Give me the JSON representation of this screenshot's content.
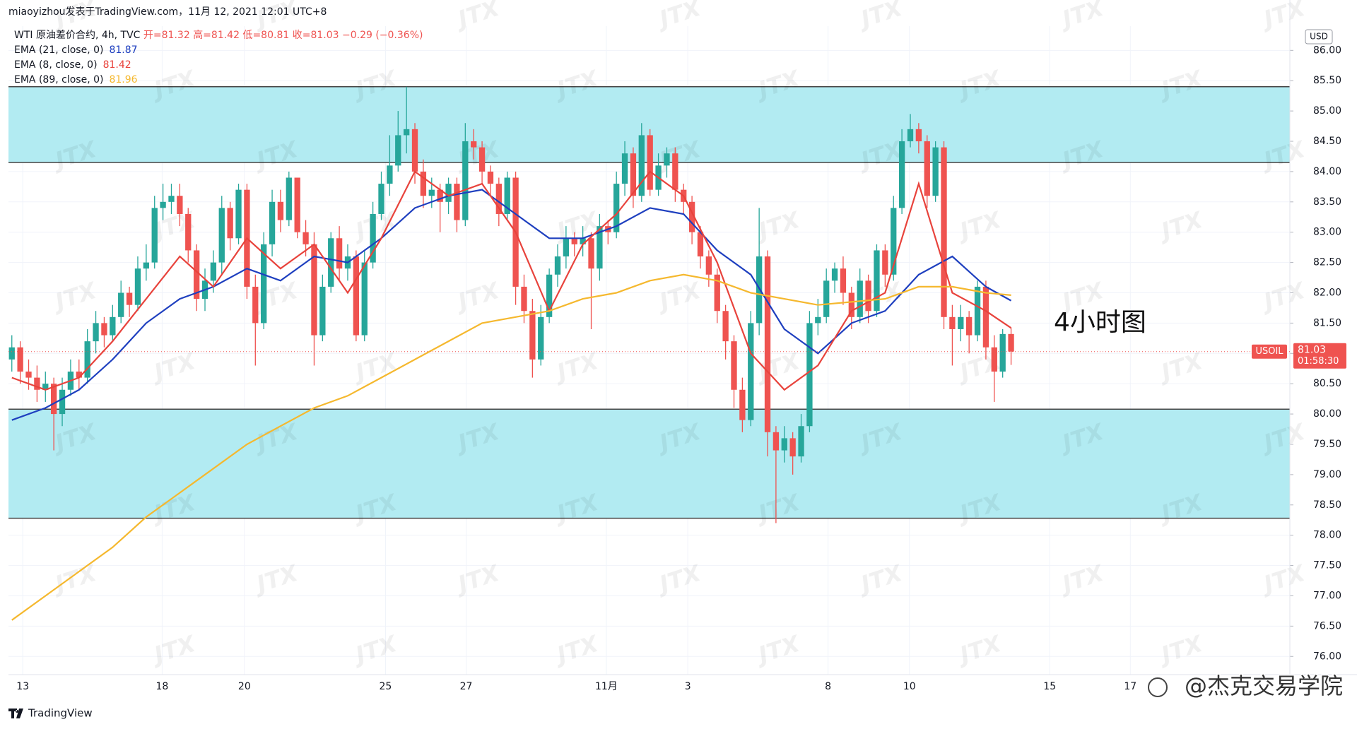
{
  "header": {
    "attribution": "miaoyizhou发表于TradingView.com，11月 12, 2021 12:01 UTC+8"
  },
  "footer": {
    "logo": "TradingView",
    "watermark": "@杰克交易学院",
    "background_mark": "JTX"
  },
  "chart_data": {
    "type": "candlestick",
    "legend": {
      "symbol": "WTI 原油差价合约, 4h, TVC",
      "open": "开=81.32",
      "high": "高=81.42",
      "low": "低=80.81",
      "close": "收=81.03",
      "change": "−0.29 (−0.36%)"
    },
    "currency": "USD",
    "up_color": "#26a69a",
    "down_color": "#ef5350",
    "zone_color": "#b2ebf2",
    "grid": true,
    "xlim": [
      -0.4,
      152.2
    ],
    "ylim": [
      75.7,
      86.4
    ],
    "xticks": [
      {
        "value": 1.3,
        "label": "13"
      },
      {
        "value": 17.9,
        "label": "18"
      },
      {
        "value": 27.7,
        "label": "20"
      },
      {
        "value": 44.5,
        "label": "25"
      },
      {
        "value": 54.1,
        "label": "27"
      },
      {
        "value": 70.8,
        "label": "11月"
      },
      {
        "value": 80.5,
        "label": "3"
      },
      {
        "value": 97.2,
        "label": "8"
      },
      {
        "value": 106.9,
        "label": "10"
      },
      {
        "value": 123.6,
        "label": "15"
      },
      {
        "value": 133.2,
        "label": "17"
      }
    ],
    "yticks": [
      {
        "value": 76,
        "label": "76.00"
      },
      {
        "value": 76.5,
        "label": "76.50"
      },
      {
        "value": 77,
        "label": "77.00"
      },
      {
        "value": 77.5,
        "label": "77.50"
      },
      {
        "value": 78,
        "label": "78.00"
      },
      {
        "value": 78.5,
        "label": "78.50"
      },
      {
        "value": 79,
        "label": "79.00"
      },
      {
        "value": 79.5,
        "label": "79.50"
      },
      {
        "value": 80,
        "label": "80.00"
      },
      {
        "value": 80.5,
        "label": "80.50"
      },
      {
        "value": 81,
        "label": "81.00"
      },
      {
        "value": 81.5,
        "label": "81.50"
      },
      {
        "value": 82,
        "label": "82.00"
      },
      {
        "value": 82.5,
        "label": "82.50"
      },
      {
        "value": 83,
        "label": "83.00"
      },
      {
        "value": 83.5,
        "label": "83.50"
      },
      {
        "value": 84,
        "label": "84.00"
      },
      {
        "value": 84.5,
        "label": "84.50"
      },
      {
        "value": 85,
        "label": "85.00"
      },
      {
        "value": 85.5,
        "label": "85.50"
      },
      {
        "value": 86,
        "label": "86.00"
      }
    ],
    "zones": [
      {
        "low": 84.15,
        "high": 85.4
      },
      {
        "low": 78.28,
        "high": 80.08
      }
    ],
    "candles": [
      [
        80.9,
        81.3,
        80.7,
        81.1
      ],
      [
        81.1,
        81.2,
        80.5,
        80.7
      ],
      [
        80.7,
        80.9,
        80.4,
        80.6
      ],
      [
        80.6,
        80.8,
        80.2,
        80.4
      ],
      [
        80.4,
        80.7,
        80.2,
        80.5
      ],
      [
        80.5,
        80.6,
        79.4,
        80.0
      ],
      [
        80.0,
        80.6,
        79.8,
        80.4
      ],
      [
        80.4,
        80.9,
        80.3,
        80.7
      ],
      [
        80.7,
        80.9,
        80.4,
        80.6
      ],
      [
        80.6,
        81.4,
        80.5,
        81.2
      ],
      [
        81.2,
        81.7,
        81.0,
        81.5
      ],
      [
        81.5,
        81.6,
        81.1,
        81.3
      ],
      [
        81.3,
        81.8,
        81.2,
        81.6
      ],
      [
        81.6,
        82.2,
        81.5,
        82.0
      ],
      [
        82.0,
        82.1,
        81.6,
        81.8
      ],
      [
        81.8,
        82.6,
        81.7,
        82.4
      ],
      [
        82.4,
        82.8,
        82.2,
        82.5
      ],
      [
        82.5,
        83.6,
        82.4,
        83.4
      ],
      [
        83.4,
        83.8,
        83.2,
        83.5
      ],
      [
        83.5,
        83.8,
        83.3,
        83.6
      ],
      [
        83.6,
        83.8,
        83.1,
        83.3
      ],
      [
        83.3,
        83.4,
        82.5,
        82.7
      ],
      [
        82.7,
        82.8,
        81.7,
        81.9
      ],
      [
        81.9,
        82.4,
        81.7,
        82.2
      ],
      [
        82.2,
        82.7,
        82.0,
        82.5
      ],
      [
        82.5,
        83.6,
        82.3,
        83.4
      ],
      [
        83.4,
        83.5,
        82.7,
        82.9
      ],
      [
        82.9,
        83.8,
        82.8,
        83.7
      ],
      [
        83.7,
        83.8,
        81.9,
        82.1
      ],
      [
        82.1,
        82.3,
        80.8,
        81.5
      ],
      [
        81.5,
        83.0,
        81.4,
        82.8
      ],
      [
        82.8,
        83.7,
        82.6,
        83.5
      ],
      [
        83.5,
        83.7,
        83.0,
        83.2
      ],
      [
        83.2,
        84.0,
        83.1,
        83.9
      ],
      [
        83.9,
        83.9,
        82.9,
        83.0
      ],
      [
        83.0,
        83.2,
        82.6,
        82.8
      ],
      [
        82.8,
        83.0,
        80.8,
        81.3
      ],
      [
        81.3,
        82.3,
        81.2,
        82.1
      ],
      [
        82.1,
        83.0,
        82.0,
        82.9
      ],
      [
        82.9,
        83.1,
        82.2,
        82.4
      ],
      [
        82.4,
        82.8,
        82.2,
        82.6
      ],
      [
        82.6,
        82.7,
        81.2,
        81.3
      ],
      [
        81.3,
        82.7,
        81.2,
        82.5
      ],
      [
        82.5,
        83.5,
        82.4,
        83.3
      ],
      [
        83.3,
        84.0,
        83.2,
        83.8
      ],
      [
        83.8,
        84.6,
        83.6,
        84.1
      ],
      [
        84.1,
        85.0,
        84.0,
        84.6
      ],
      [
        84.6,
        85.4,
        84.3,
        84.7
      ],
      [
        84.7,
        84.8,
        83.8,
        84.0
      ],
      [
        84.0,
        84.2,
        83.4,
        83.6
      ],
      [
        83.6,
        83.9,
        83.4,
        83.7
      ],
      [
        83.7,
        83.8,
        83.0,
        83.5
      ],
      [
        83.5,
        83.9,
        83.3,
        83.8
      ],
      [
        83.8,
        83.9,
        83.0,
        83.2
      ],
      [
        83.2,
        84.8,
        83.1,
        84.5
      ],
      [
        84.5,
        84.7,
        84.2,
        84.4
      ],
      [
        84.4,
        84.5,
        83.8,
        84.0
      ],
      [
        84.0,
        84.1,
        83.6,
        83.8
      ],
      [
        83.8,
        83.9,
        83.1,
        83.3
      ],
      [
        83.3,
        84.0,
        83.2,
        83.9
      ],
      [
        83.9,
        84.0,
        81.8,
        82.1
      ],
      [
        82.1,
        82.3,
        81.5,
        81.7
      ],
      [
        81.7,
        81.9,
        80.6,
        80.9
      ],
      [
        80.9,
        81.8,
        80.8,
        81.6
      ],
      [
        81.6,
        82.4,
        81.5,
        82.3
      ],
      [
        82.3,
        82.8,
        82.1,
        82.6
      ],
      [
        82.6,
        83.1,
        82.4,
        82.9
      ],
      [
        82.9,
        83.0,
        82.6,
        82.8
      ],
      [
        82.8,
        83.1,
        82.6,
        82.9
      ],
      [
        82.9,
        83.0,
        81.4,
        82.4
      ],
      [
        82.4,
        83.3,
        82.2,
        83.1
      ],
      [
        83.1,
        83.2,
        82.8,
        83.0
      ],
      [
        83.0,
        84.0,
        82.9,
        83.8
      ],
      [
        83.8,
        84.5,
        83.6,
        84.3
      ],
      [
        84.3,
        84.4,
        83.4,
        83.6
      ],
      [
        83.6,
        84.8,
        83.5,
        84.6
      ],
      [
        84.6,
        84.7,
        83.6,
        83.7
      ],
      [
        83.7,
        84.3,
        83.6,
        84.1
      ],
      [
        84.1,
        84.4,
        83.9,
        84.3
      ],
      [
        84.3,
        84.4,
        83.5,
        83.7
      ],
      [
        83.7,
        83.8,
        83.3,
        83.5
      ],
      [
        83.5,
        83.6,
        82.8,
        83.0
      ],
      [
        83.0,
        83.1,
        82.4,
        82.6
      ],
      [
        82.6,
        82.7,
        82.1,
        82.3
      ],
      [
        82.3,
        82.4,
        81.5,
        81.7
      ],
      [
        81.7,
        81.8,
        80.9,
        81.2
      ],
      [
        81.2,
        81.3,
        80.1,
        80.4
      ],
      [
        80.4,
        80.6,
        79.7,
        79.9
      ],
      [
        79.9,
        81.7,
        79.8,
        81.5
      ],
      [
        81.5,
        83.4,
        81.3,
        82.6
      ],
      [
        82.6,
        82.7,
        79.3,
        79.7
      ],
      [
        79.7,
        79.8,
        78.2,
        79.4
      ],
      [
        79.4,
        79.8,
        79.2,
        79.6
      ],
      [
        79.6,
        79.7,
        79.0,
        79.3
      ],
      [
        79.3,
        80.0,
        79.2,
        79.8
      ],
      [
        79.8,
        81.7,
        79.7,
        81.5
      ],
      [
        81.5,
        81.9,
        81.3,
        81.6
      ],
      [
        81.6,
        82.4,
        81.5,
        82.2
      ],
      [
        82.2,
        82.5,
        82.0,
        82.4
      ],
      [
        82.4,
        82.6,
        81.8,
        82.0
      ],
      [
        82.0,
        82.1,
        81.4,
        81.6
      ],
      [
        81.6,
        82.4,
        81.5,
        82.2
      ],
      [
        82.2,
        82.3,
        81.5,
        81.7
      ],
      [
        81.7,
        82.8,
        81.6,
        82.7
      ],
      [
        82.7,
        82.8,
        82.1,
        82.3
      ],
      [
        82.3,
        83.6,
        82.2,
        83.4
      ],
      [
        83.4,
        84.7,
        83.3,
        84.5
      ],
      [
        84.5,
        84.95,
        84.4,
        84.7
      ],
      [
        84.7,
        84.8,
        84.3,
        84.5
      ],
      [
        84.5,
        84.6,
        83.4,
        83.6
      ],
      [
        83.6,
        84.5,
        83.5,
        84.4
      ],
      [
        84.4,
        84.5,
        81.4,
        81.6
      ],
      [
        81.6,
        81.8,
        80.8,
        81.4
      ],
      [
        81.4,
        81.8,
        81.2,
        81.6
      ],
      [
        81.6,
        81.7,
        81.0,
        81.3
      ],
      [
        81.3,
        82.2,
        81.2,
        82.1
      ],
      [
        82.1,
        82.2,
        80.9,
        81.1
      ],
      [
        81.1,
        81.3,
        80.2,
        80.7
      ],
      [
        80.7,
        81.4,
        80.6,
        81.32
      ],
      [
        81.32,
        81.42,
        80.81,
        81.03
      ]
    ],
    "series": [
      {
        "name": "EMA (21, close, 0)",
        "color": "#1e3fbf",
        "x": [
          0,
          4,
          8,
          12,
          16,
          20,
          24,
          28,
          32,
          36,
          40,
          44,
          48,
          52,
          56,
          60,
          64,
          68,
          72,
          76,
          80,
          84,
          88,
          92,
          96,
          100,
          104,
          108,
          112,
          116,
          119
        ],
        "values": [
          79.9,
          80.1,
          80.4,
          80.9,
          81.5,
          81.9,
          82.1,
          82.4,
          82.2,
          82.6,
          82.5,
          82.9,
          83.4,
          83.6,
          83.7,
          83.3,
          82.9,
          82.9,
          83.1,
          83.4,
          83.3,
          82.7,
          82.3,
          81.4,
          81.0,
          81.5,
          81.7,
          82.3,
          82.6,
          82.1,
          81.87
        ]
      },
      {
        "name": "EMA (8, close, 0)",
        "color": "#e8433c",
        "x": [
          0,
          4,
          8,
          12,
          16,
          20,
          24,
          28,
          32,
          36,
          40,
          44,
          48,
          52,
          56,
          60,
          64,
          68,
          72,
          76,
          80,
          84,
          88,
          92,
          96,
          100,
          104,
          108,
          112,
          116,
          119
        ],
        "values": [
          80.6,
          80.4,
          80.6,
          81.2,
          81.9,
          82.6,
          82.1,
          82.9,
          82.4,
          82.8,
          82.0,
          82.9,
          84.0,
          83.6,
          83.8,
          83.0,
          81.7,
          82.8,
          83.3,
          84.0,
          83.6,
          82.5,
          81.0,
          80.4,
          80.8,
          81.7,
          82.0,
          83.8,
          82.0,
          81.7,
          81.42
        ]
      },
      {
        "name": "EMA (89, close, 0)",
        "color": "#f5b82e",
        "x": [
          0,
          4,
          8,
          12,
          16,
          20,
          24,
          28,
          32,
          36,
          40,
          44,
          48,
          52,
          56,
          60,
          64,
          68,
          72,
          76,
          80,
          84,
          88,
          92,
          96,
          100,
          104,
          108,
          112,
          116,
          119
        ],
        "values": [
          76.6,
          77.0,
          77.4,
          77.8,
          78.3,
          78.7,
          79.1,
          79.5,
          79.8,
          80.1,
          80.3,
          80.6,
          80.9,
          81.2,
          81.5,
          81.6,
          81.7,
          81.9,
          82.0,
          82.2,
          82.3,
          82.2,
          82.0,
          81.9,
          81.8,
          81.85,
          81.9,
          82.1,
          82.1,
          82.0,
          81.96
        ]
      }
    ],
    "last": {
      "symbol": "USOIL",
      "price": 81.03,
      "countdown": "01:58:30"
    },
    "annotations": [
      {
        "text": "4小时图"
      }
    ]
  }
}
